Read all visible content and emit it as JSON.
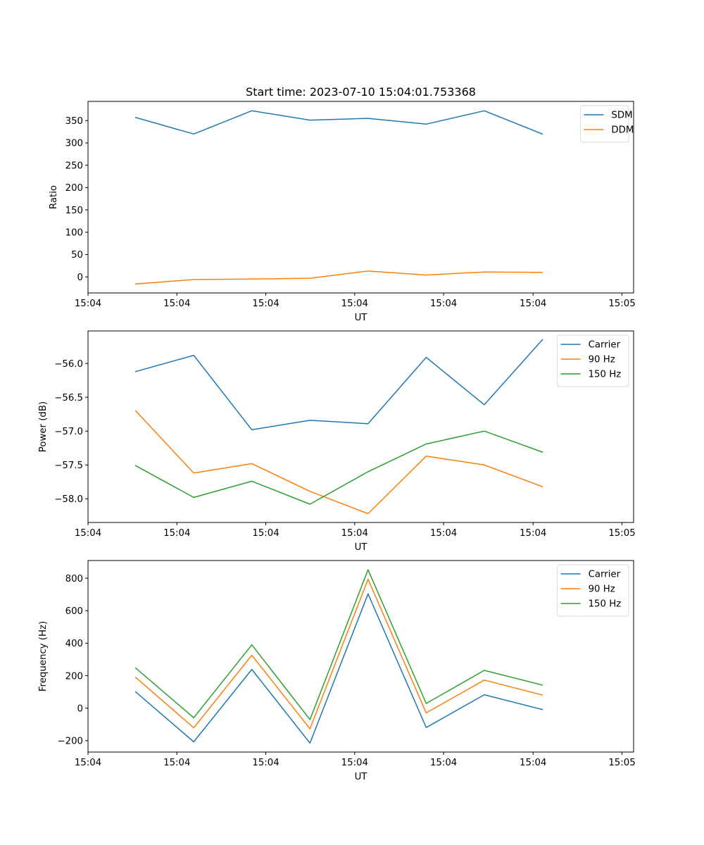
{
  "title": "Start time: 2023-07-10 15:04:01.753368",
  "colors": {
    "blue": "#1f77b4",
    "orange": "#ff7f0e",
    "green": "#2ca02c"
  },
  "chart_data": [
    {
      "type": "line",
      "title": "Start time: 2023-07-10 15:04:01.753368",
      "xlabel": "UT",
      "ylabel": "Ratio",
      "x": [
        1,
        2,
        3,
        4,
        5,
        6,
        7,
        8
      ],
      "xlim": [
        0.18,
        9.57
      ],
      "xticks": [
        0.18,
        1.71,
        3.24,
        4.77,
        6.3,
        7.84,
        9.37
      ],
      "xtick_labels": [
        "15:04",
        "15:04",
        "15:04",
        "15:04",
        "15:04",
        "15:04",
        "15:05"
      ],
      "ylim": [
        -36,
        393
      ],
      "yticks": [
        0,
        50,
        100,
        150,
        200,
        250,
        300,
        350
      ],
      "ytick_labels": [
        "0",
        "50",
        "100",
        "150",
        "200",
        "250",
        "300",
        "350"
      ],
      "grid": false,
      "legend": "top-right",
      "series": [
        {
          "name": "SDM",
          "color": "#1f77b4",
          "values": [
            357,
            320,
            372,
            351,
            355,
            342,
            372,
            320
          ]
        },
        {
          "name": "DDM",
          "color": "#ff7f0e",
          "values": [
            -16,
            -6,
            -5,
            -3,
            13,
            4,
            11,
            10
          ]
        }
      ]
    },
    {
      "type": "line",
      "title": "",
      "xlabel": "UT",
      "ylabel": "Power (dB)",
      "x": [
        1,
        2,
        3,
        4,
        5,
        6,
        7,
        8
      ],
      "xlim": [
        0.18,
        9.57
      ],
      "xticks": [
        0.18,
        1.71,
        3.24,
        4.77,
        6.3,
        7.84,
        9.37
      ],
      "xtick_labels": [
        "15:04",
        "15:04",
        "15:04",
        "15:04",
        "15:04",
        "15:04",
        "15:05"
      ],
      "ylim": [
        -58.35,
        -55.52
      ],
      "yticks": [
        -58.0,
        -57.5,
        -57.0,
        -56.5,
        -56.0
      ],
      "ytick_labels": [
        "−58.0",
        "−57.5",
        "−57.0",
        "−56.5",
        "−56.0"
      ],
      "grid": false,
      "legend": "top-right",
      "series": [
        {
          "name": "Carrier",
          "color": "#1f77b4",
          "values": [
            -56.12,
            -55.88,
            -56.98,
            -56.84,
            -56.89,
            -55.91,
            -56.61,
            -55.65
          ]
        },
        {
          "name": "90 Hz",
          "color": "#ff7f0e",
          "values": [
            -56.7,
            -57.62,
            -57.48,
            -57.89,
            -58.22,
            -57.37,
            -57.5,
            -57.82
          ]
        },
        {
          "name": "150 Hz",
          "color": "#2ca02c",
          "values": [
            -57.51,
            -57.98,
            -57.74,
            -58.08,
            -57.6,
            -57.19,
            -57.0,
            -57.31
          ]
        }
      ]
    },
    {
      "type": "line",
      "title": "",
      "xlabel": "UT",
      "ylabel": "Frequency (Hz)",
      "x": [
        1,
        2,
        3,
        4,
        5,
        6,
        7,
        8
      ],
      "xlim": [
        0.18,
        9.57
      ],
      "xticks": [
        0.18,
        1.71,
        3.24,
        4.77,
        6.3,
        7.84,
        9.37
      ],
      "xtick_labels": [
        "15:04",
        "15:04",
        "15:04",
        "15:04",
        "15:04",
        "15:04",
        "15:05"
      ],
      "ylim": [
        -270,
        909
      ],
      "yticks": [
        -200,
        0,
        200,
        400,
        600,
        800
      ],
      "ytick_labels": [
        "−200",
        "0",
        "200",
        "400",
        "600",
        "800"
      ],
      "grid": false,
      "legend": "top-right",
      "series": [
        {
          "name": "Carrier",
          "color": "#1f77b4",
          "values": [
            100,
            -207,
            239,
            -215,
            704,
            -119,
            83,
            -8
          ]
        },
        {
          "name": "90 Hz",
          "color": "#ff7f0e",
          "values": [
            190,
            -121,
            326,
            -127,
            794,
            -29,
            173,
            81
          ]
        },
        {
          "name": "150 Hz",
          "color": "#2ca02c",
          "values": [
            247,
            -59,
            390,
            -70,
            852,
            29,
            233,
            142
          ]
        }
      ]
    }
  ]
}
